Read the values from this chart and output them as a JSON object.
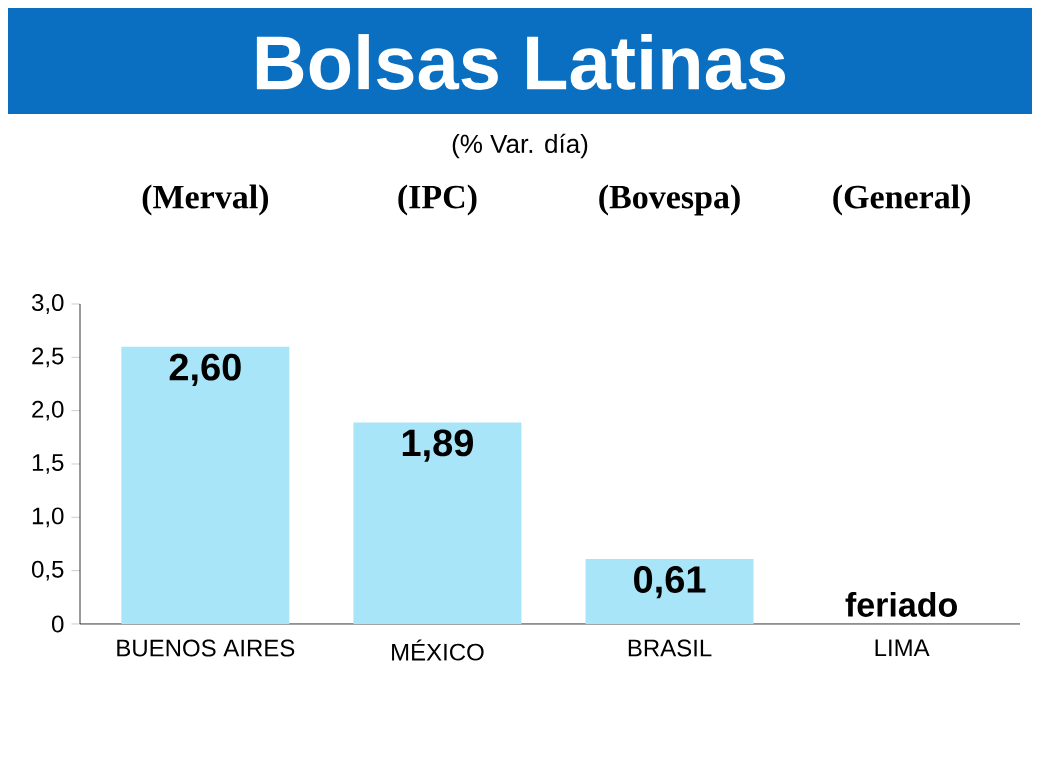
{
  "chart_data": {
    "type": "bar",
    "title": "Bolsas Latinas",
    "subtitle": "(% Var. día)",
    "categories": [
      "BUENOS AIRES",
      "MÉXICO",
      "BRASIL",
      "LIMA"
    ],
    "values": [
      2.6,
      1.89,
      0.61,
      null
    ],
    "value_labels": [
      "2,60",
      "1,89",
      "0,61",
      "feriado"
    ],
    "color": "#a9e5f8",
    "annotations": [
      "(Merval)",
      "(IPC)",
      "(Bovespa)",
      "(General)"
    ],
    "ylim": [
      0,
      3.0
    ],
    "yticks": [
      0,
      {
        "value": 0.5,
        "label": "0,5"
      },
      {
        "value": 1.0,
        "label": "1,0"
      },
      {
        "value": 1.5,
        "label": "1,5"
      },
      {
        "value": 2.0,
        "label": "2,0"
      },
      {
        "value": 2.5,
        "label": "2,5"
      },
      {
        "value": 3.0,
        "label": "3,0"
      }
    ]
  }
}
